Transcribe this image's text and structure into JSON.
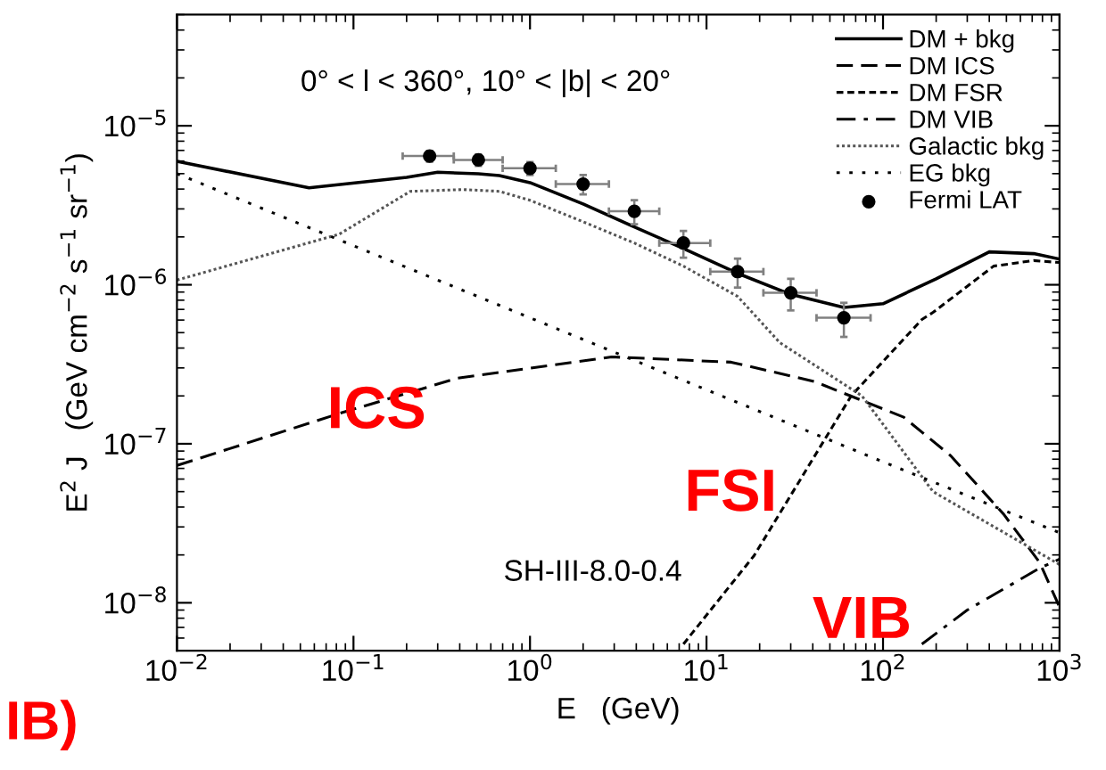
{
  "chart_data": {
    "type": "line",
    "xlabel": "E   (GeV)",
    "ylabel": "E$^{2}$ J   (GeV cm$^{−2}$ s$^{−1}$ sr$^{−1}$)",
    "log": "xy",
    "xlim": [
      0.01,
      1000
    ],
    "ylim": [
      5e-09,
      5e-05
    ],
    "xticks": [
      {
        "value": 0.01,
        "label": "10$^{−2}$"
      },
      {
        "value": 0.1,
        "label": "10$^{−1}$"
      },
      {
        "value": 1,
        "label": "10$^{0}$"
      },
      {
        "value": 10,
        "label": "10$^{1}$"
      },
      {
        "value": 100,
        "label": "10$^{2}$"
      },
      {
        "value": 1000,
        "label": "10$^{3}$"
      }
    ],
    "yticks": [
      {
        "value": 1e-08,
        "label": "10$^{−8}$"
      },
      {
        "value": 1e-07,
        "label": "10$^{−7}$"
      },
      {
        "value": 1e-06,
        "label": "10$^{−6}$"
      },
      {
        "value": 1e-05,
        "label": "10$^{−5}$"
      }
    ],
    "grid": false,
    "legend": "top right",
    "series": [
      {
        "name": "DM + bkg",
        "color": "#000000",
        "line_style": "solid",
        "x": [
          0.01,
          0.056,
          0.2,
          0.3,
          0.51,
          0.67,
          1.0,
          2.0,
          3.9,
          7.4,
          15,
          30,
          60,
          100,
          200,
          400,
          714,
          1000
        ],
        "values": [
          5.98e-06,
          4.07e-06,
          4.74e-06,
          5.1e-06,
          4.99e-06,
          4.86e-06,
          4.39e-06,
          3.22e-06,
          2.31e-06,
          1.69e-06,
          1.18e-06,
          8.7e-07,
          7.2e-07,
          7.6e-07,
          1.09e-06,
          1.61e-06,
          1.57e-06,
          1.45e-06
        ]
      },
      {
        "name": "DM ICS",
        "color": "#000000",
        "line_style": "dashed",
        "x": [
          0.01,
          0.083,
          0.39,
          2.9,
          13.8,
          41,
          131,
          242,
          483,
          770,
          1000
        ],
        "values": [
          7.3e-08,
          1.55e-07,
          2.59e-07,
          3.52e-07,
          3.26e-07,
          2.46e-07,
          1.47e-07,
          8.4e-08,
          3.6e-08,
          1.8e-08,
          9.4e-09
        ]
      },
      {
        "name": "DM FSR",
        "color": "#000000",
        "line_style": "short dashed",
        "x": [
          7.4,
          18.6,
          66,
          166,
          192,
          423,
          714,
          1000
        ],
        "values": [
          5.5e-09,
          1.98e-08,
          2e-07,
          6.05e-07,
          6.7e-07,
          1.31e-06,
          1.42e-06,
          1.38e-06
        ]
      },
      {
        "name": "DM VIB",
        "color": "#000000",
        "line_style": "dashdot",
        "x": [
          166,
          300,
          770,
          1000
        ],
        "values": [
          5.5e-09,
          9e-09,
          1.65e-08,
          1.88e-08
        ]
      },
      {
        "name": "Galactic bkg",
        "color": "#555555",
        "line_style": "dotted",
        "x": [
          0.01,
          0.083,
          0.21,
          0.42,
          0.67,
          1.0,
          2.0,
          3.9,
          7.4,
          15,
          26,
          76,
          192,
          1000
        ],
        "values": [
          1.07e-06,
          2.08e-06,
          3.87e-06,
          3.97e-06,
          3.87e-06,
          3.4e-06,
          2.49e-06,
          1.83e-06,
          1.31e-06,
          8.45e-07,
          4.33e-07,
          2e-07,
          5e-08,
          1.74e-08
        ]
      },
      {
        "name": "EG bkg",
        "color": "#000000",
        "line_style": "loosely dotted",
        "x": [
          0.01,
          1,
          100,
          1000
        ],
        "values": [
          5e-06,
          6.2e-07,
          7.7e-08,
          2.76e-08
        ]
      },
      {
        "name": "Fermi LAT",
        "type": "scatter",
        "marker": "circle",
        "color": "#000000",
        "x": [
          0.27,
          0.51,
          1.0,
          2.0,
          3.9,
          7.4,
          15,
          30,
          60
        ],
        "values": [
          6.45e-06,
          6.1e-06,
          5.4e-06,
          4.3e-06,
          2.9e-06,
          1.83e-06,
          1.21e-06,
          8.9e-07,
          6.2e-07
        ],
        "errors": [
          5e-07,
          5e-07,
          5e-07,
          6e-07,
          5e-07,
          3.5e-07,
          2.5e-07,
          2e-07,
          1.5e-07
        ],
        "xerrors": [
          [
            0.19,
            0.37
          ],
          [
            0.37,
            0.7
          ],
          [
            0.7,
            1.4
          ],
          [
            1.4,
            2.8
          ],
          [
            2.8,
            5.4
          ],
          [
            5.4,
            10.5
          ],
          [
            10.5,
            21
          ],
          [
            21,
            42
          ],
          [
            42,
            85
          ]
        ]
      }
    ],
    "annotations": [
      "0° < l < 360°, 10° < |b| < 20°",
      "SH-III-8.0-0.4",
      "IB)",
      "ICS",
      "FSI",
      "VIB"
    ]
  }
}
